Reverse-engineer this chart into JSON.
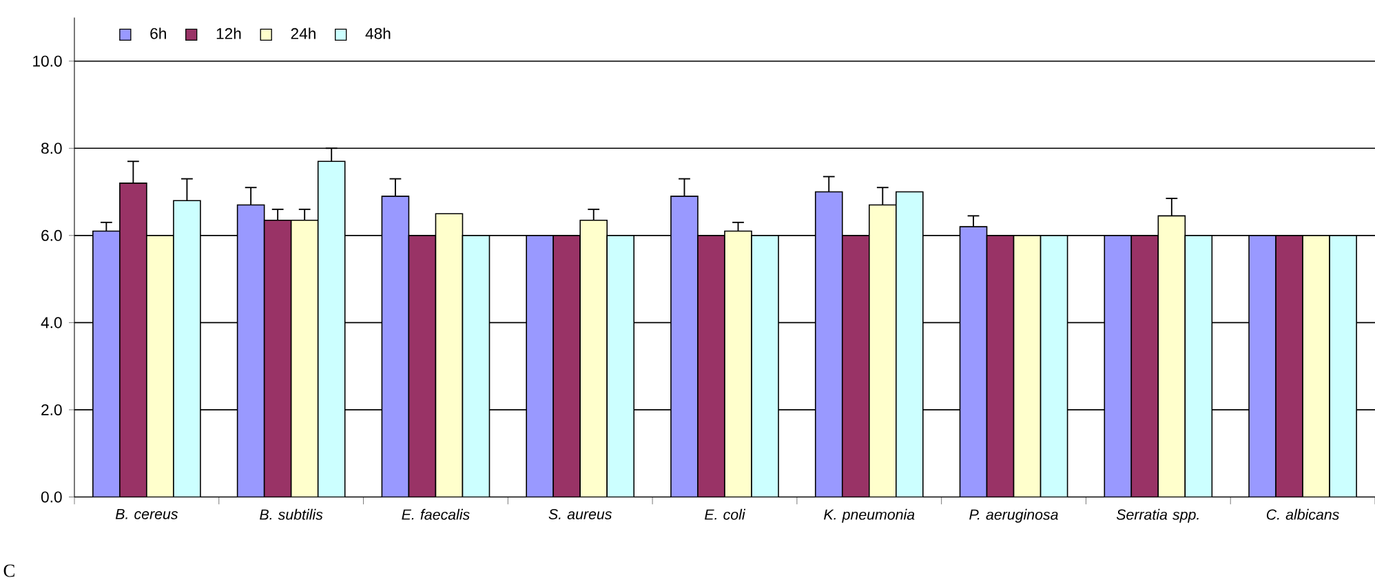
{
  "chart_data": {
    "type": "bar",
    "categories": [
      "B. cereus",
      "B. subtilis",
      "E. faecalis",
      "S. aureus",
      "E. coli",
      "K. pneumonia",
      "P. aeruginosa",
      "Serratia spp.",
      "C. albicans"
    ],
    "series": [
      {
        "name": "6h",
        "color": "#9999ff",
        "values": [
          6.1,
          6.7,
          6.9,
          6.0,
          6.9,
          7.0,
          6.2,
          6.0,
          6.0
        ],
        "errors": [
          [
            6.1,
            6.3
          ],
          [
            6.7,
            7.1
          ],
          [
            6.9,
            7.3
          ],
          null,
          [
            6.9,
            7.3
          ],
          [
            7.0,
            7.35
          ],
          [
            6.2,
            6.45
          ],
          null,
          null
        ]
      },
      {
        "name": "12h",
        "color": "#993366",
        "values": [
          7.2,
          6.35,
          6.0,
          6.0,
          6.0,
          6.0,
          6.0,
          6.0,
          6.0
        ],
        "errors": [
          [
            7.2,
            7.7
          ],
          [
            6.35,
            6.6
          ],
          null,
          null,
          null,
          null,
          null,
          null,
          null
        ]
      },
      {
        "name": "24h",
        "color": "#ffffcc",
        "values": [
          6.0,
          6.35,
          6.5,
          6.35,
          6.1,
          6.7,
          6.0,
          6.45,
          6.0
        ],
        "errors": [
          null,
          [
            6.35,
            6.6
          ],
          null,
          [
            6.35,
            6.6
          ],
          [
            6.1,
            6.3
          ],
          [
            6.7,
            7.1
          ],
          null,
          [
            6.45,
            6.85
          ],
          null
        ]
      },
      {
        "name": "48h",
        "color": "#ccffff",
        "values": [
          6.8,
          7.7,
          6.0,
          6.0,
          6.0,
          7.0,
          6.0,
          6.0,
          6.0
        ],
        "errors": [
          [
            6.8,
            7.3
          ],
          [
            7.7,
            8.0
          ],
          null,
          null,
          null,
          null,
          null,
          null,
          null
        ]
      }
    ],
    "ylim": [
      0,
      11
    ],
    "yticks": [
      {
        "value": 0,
        "label": "0.0"
      },
      {
        "value": 2,
        "label": "2.0"
      },
      {
        "value": 4,
        "label": "4.0"
      },
      {
        "value": 6,
        "label": "6.0"
      },
      {
        "value": 8,
        "label": "8.0"
      },
      {
        "value": 10,
        "label": "10.0"
      }
    ],
    "grid": "y",
    "legend": "top left",
    "annotations": [
      "C"
    ]
  }
}
